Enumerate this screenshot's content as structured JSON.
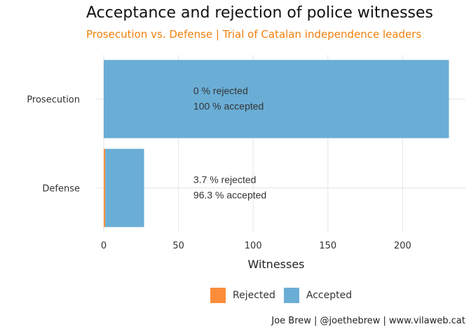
{
  "title": "Acceptance and rejection of police witnesses",
  "subtitle": "Prosecution vs. Defense | Trial of Catalan independence leaders",
  "caption": "Joe Brew | @joethebrew | www.vilaweb.cat",
  "colors": {
    "rejected": "#fb8d3a",
    "accepted": "#6aaed6",
    "grid": "#e5e5e5",
    "tick_text": "#333333",
    "annotation_text": "#333333"
  },
  "legend": {
    "position": "bottom",
    "items": [
      {
        "label": "Rejected",
        "color": "#fb8d3a"
      },
      {
        "label": "Accepted",
        "color": "#6aaed6"
      }
    ]
  },
  "chart_data": {
    "type": "bar",
    "orientation": "horizontal",
    "stacked": true,
    "categories": [
      "Prosecution",
      "Defense"
    ],
    "series": [
      {
        "name": "Rejected",
        "values": [
          0,
          1
        ]
      },
      {
        "name": "Accepted",
        "values": [
          231,
          26
        ]
      }
    ],
    "xlabel": "Witnesses",
    "ylabel": "",
    "xlim": [
      0,
      242
    ],
    "xticks": [
      0,
      50,
      100,
      150,
      200
    ],
    "grid": true,
    "annotations": [
      {
        "category": "Prosecution",
        "x": 60,
        "lines": [
          "0 % rejected",
          "100 % accepted"
        ]
      },
      {
        "category": "Defense",
        "x": 60,
        "lines": [
          "3.7 % rejected",
          "96.3 % accepted"
        ]
      }
    ]
  }
}
